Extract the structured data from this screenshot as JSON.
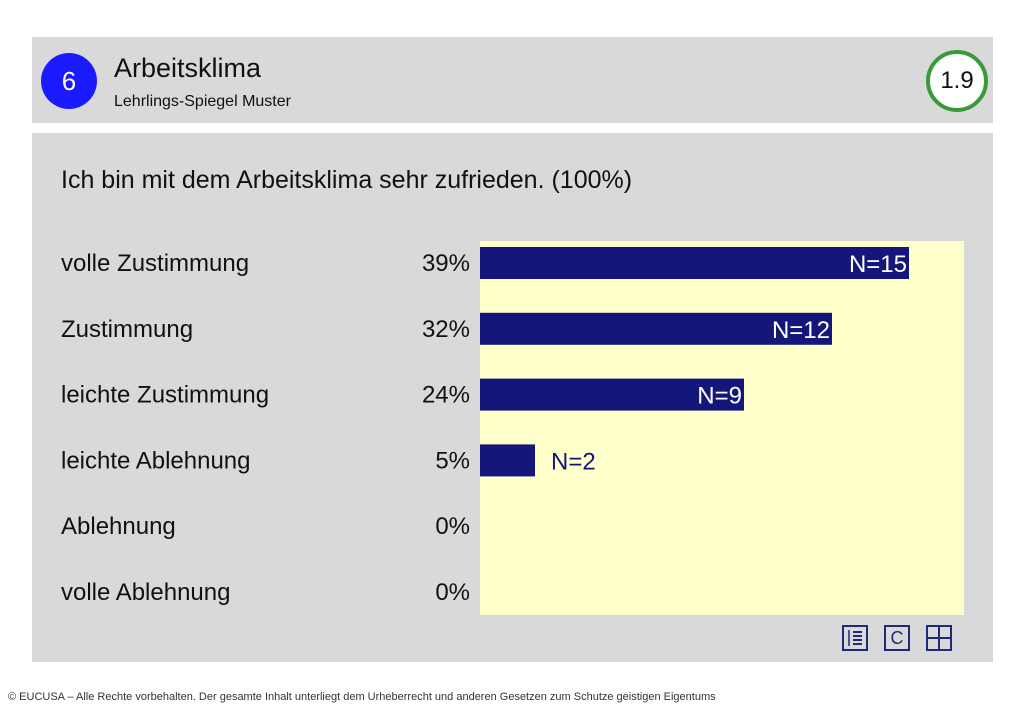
{
  "header": {
    "section_number": "6",
    "title": "Arbeitsklima",
    "subtitle": "Lehrlings-Spiegel Muster",
    "page_label": "1.9"
  },
  "question": "Ich bin mit dem Arbeitsklima sehr zufrieden. (100%)",
  "chart_data": {
    "type": "bar",
    "orientation": "horizontal",
    "categories": [
      "volle Zustimmung",
      "Zustimmung",
      "leichte Zustimmung",
      "leichte Ablehnung",
      "Ablehnung",
      "volle Ablehnung"
    ],
    "percent_labels": [
      "39%",
      "32%",
      "24%",
      "5%",
      "0%",
      "0%"
    ],
    "values": [
      39,
      32,
      24,
      5,
      0,
      0
    ],
    "n_labels": [
      "N=15",
      "N=12",
      "N=9",
      "N=2",
      "",
      ""
    ],
    "xlim": [
      0,
      44
    ],
    "bar_color": "#14167a",
    "plot_background": "#ffffcc"
  },
  "footer": {
    "icons": [
      "list-icon",
      "c-icon",
      "grid-icon"
    ],
    "icon_c_label": "C",
    "copyright": "© EUCUSA – Alle Rechte vorbehalten. Der gesamte Inhalt unterliegt dem Urheberrecht und anderen Gesetzen zum Schutze geistigen Eigentums"
  }
}
